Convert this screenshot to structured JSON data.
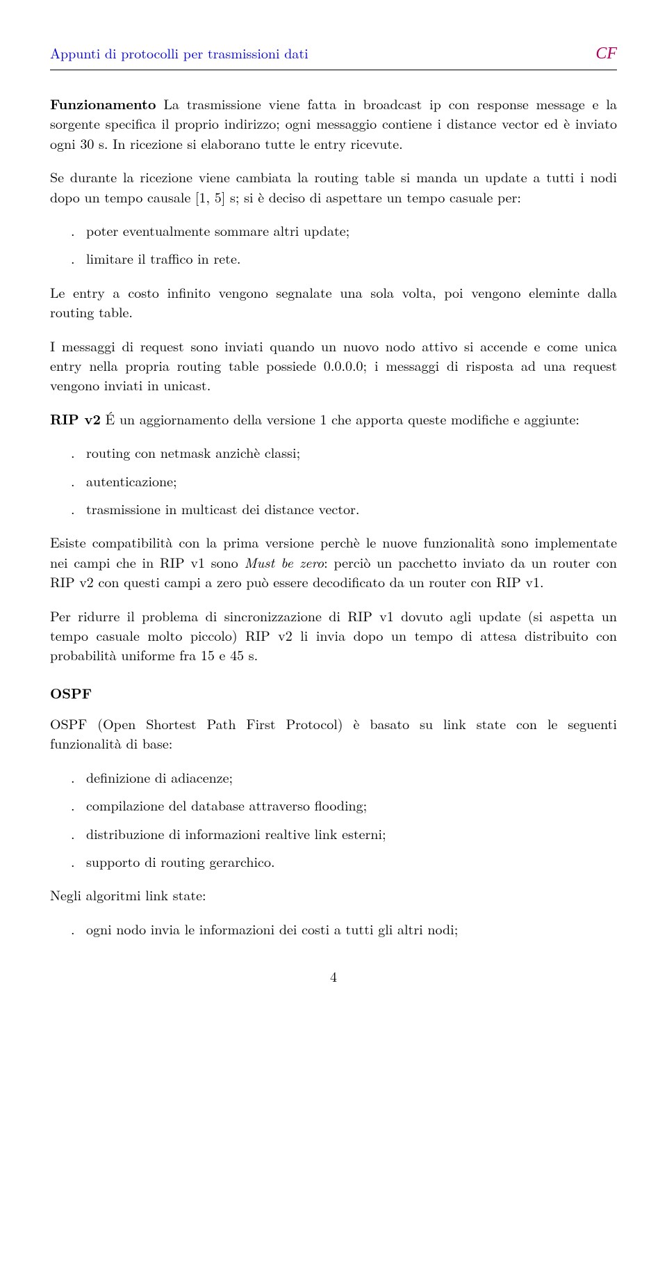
{
  "header": {
    "left": "Appunti di protocolli per trasmissioni dati",
    "right": "CF"
  },
  "body": {
    "p1_runin": "Funzionamento",
    "p1_rest": "   La trasmissione viene fatta in broadcast ip con response message e la sorgente specifica il proprio indirizzo; ogni messaggio contiene i distance vector ed è inviato ogni 30 s. In ricezione si elaborano tutte le entry ricevute.",
    "p2": "Se durante la ricezione viene cambiata la routing table si manda un update a tutti i nodi dopo un tempo causale [1, 5] s; si è deciso di aspettare un tempo casuale per:",
    "list1": [
      "poter eventualmente sommare altri update;",
      "limitare il traffico in rete."
    ],
    "p3": "Le entry a costo infinito vengono segnalate una sola volta, poi vengono eleminte dalla routing table.",
    "p4": "I messaggi di request sono inviati quando un nuovo nodo attivo si accende e come unica entry nella propria routing table possiede 0.0.0.0; i messaggi di risposta ad una request vengono inviati in unicast.",
    "p5_runin": "RIP v2",
    "p5_rest": "   É un aggiornamento della versione 1 che apporta queste modifiche e aggiunte:",
    "list2": [
      "routing con netmask anzichè classi;",
      "autenticazione;",
      "trasmissione in multicast dei distance vector."
    ],
    "p6_a": "Esiste compatibilità con la prima versione perchè le nuove funzionalità sono implementate nei campi che in RIP v1 sono ",
    "p6_i": "Must be zero",
    "p6_b": ": perciò un pacchetto inviato da un router con RIP v2 con questi campi a zero può essere decodificato da un router con RIP v1.",
    "p7": "Per ridurre il problema di sincronizzazione di RIP v1 dovuto agli update (si aspetta un tempo casuale molto piccolo) RIP v2 li invia dopo un tempo di attesa distribuito con probabilità uniforme fra 15 e 45 s.",
    "h_ospf": "OSPF",
    "p8": "OSPF (Open Shortest Path First Protocol) è basato su link state con le seguenti funzionalità di base:",
    "list3": [
      "definizione di adiacenze;",
      "compilazione del database attraverso flooding;",
      "distribuzione di informazioni realtive link esterni;",
      "supporto di routing gerarchico."
    ],
    "p9": "Negli algoritmi link state:",
    "list4": [
      "ogni nodo invia le informazioni dei costi a tutti gli altri nodi;"
    ],
    "page_number": "4"
  }
}
